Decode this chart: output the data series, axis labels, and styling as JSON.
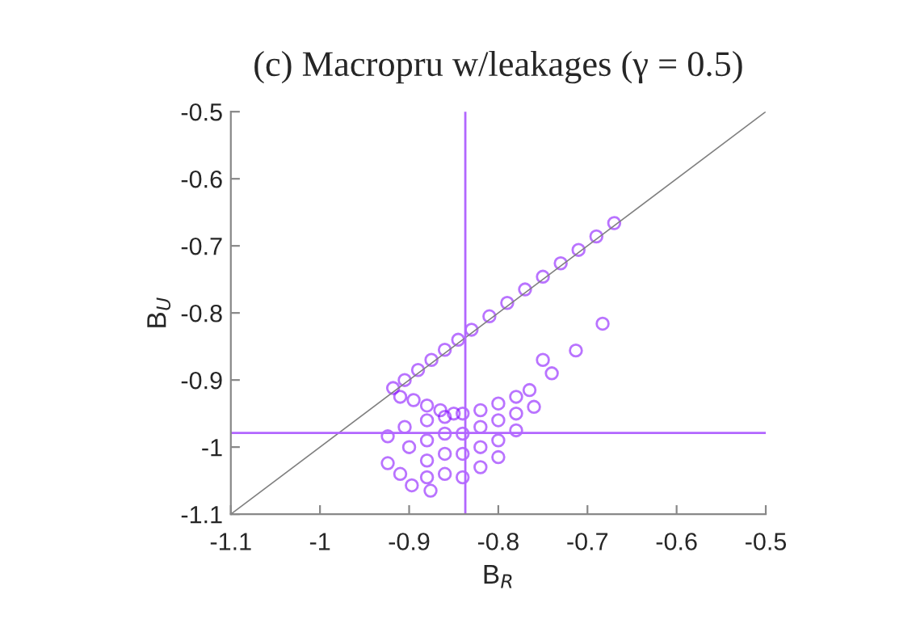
{
  "chart_data": {
    "type": "scatter",
    "title": "(c) Macropru w/leakages (γ = 0.5)",
    "xlabel": "B$_{R}$",
    "ylabel": "B$_{U}$",
    "xlim": [
      -1.1,
      -0.5
    ],
    "ylim": [
      -1.1,
      -0.5
    ],
    "xticks": [
      -1.1,
      -1,
      -0.9,
      -0.8,
      -0.7,
      -0.6,
      -0.5
    ],
    "yticks": [
      -1.1,
      -1,
      -0.9,
      -0.8,
      -0.7,
      -0.6,
      -0.5
    ],
    "grid": false,
    "legend": false,
    "series": [
      {
        "marker": "circle",
        "color": "#7f00ff",
        "x": [
          -0.918,
          -0.905,
          -0.89,
          -0.875,
          -0.86,
          -0.845,
          -0.83,
          -0.81,
          -0.79,
          -0.77,
          -0.75,
          -0.73,
          -0.71,
          -0.69,
          -0.67,
          -0.91,
          -0.895,
          -0.88,
          -0.865,
          -0.85,
          -0.88,
          -0.88,
          -0.88,
          -0.88,
          -0.86,
          -0.86,
          -0.86,
          -0.86,
          -0.84,
          -0.84,
          -0.84,
          -0.84,
          -0.82,
          -0.82,
          -0.82,
          -0.82,
          -0.8,
          -0.8,
          -0.8,
          -0.8,
          -0.78,
          -0.78,
          -0.78,
          -0.765,
          -0.76,
          -0.924,
          -0.924,
          -0.905,
          -0.9,
          -0.897,
          -0.876,
          -0.91,
          -0.74,
          -0.713,
          -0.683,
          -0.75
        ],
        "values": [
          -0.912,
          -0.9,
          -0.885,
          -0.87,
          -0.855,
          -0.84,
          -0.825,
          -0.805,
          -0.785,
          -0.765,
          -0.746,
          -0.726,
          -0.706,
          -0.686,
          -0.666,
          -0.925,
          -0.93,
          -0.938,
          -0.945,
          -0.95,
          -0.96,
          -0.99,
          -1.02,
          -1.045,
          -0.955,
          -0.98,
          -1.01,
          -1.04,
          -0.95,
          -0.98,
          -1.01,
          -1.045,
          -0.945,
          -0.97,
          -1.0,
          -1.03,
          -0.935,
          -0.96,
          -0.99,
          -1.015,
          -0.925,
          -0.95,
          -0.975,
          -0.915,
          -0.94,
          -0.984,
          -1.024,
          -0.97,
          -1.0,
          -1.057,
          -1.065,
          -1.04,
          -0.89,
          -0.856,
          -0.816,
          -0.87
        ]
      },
      {
        "type": "line",
        "marker": "none",
        "color": "#808080",
        "x": [
          -1.1,
          -0.5
        ],
        "values": [
          -1.1,
          -0.5
        ]
      }
    ],
    "ref_lines": [
      {
        "axis": "x",
        "value": -0.837,
        "color": "#b266ff"
      },
      {
        "axis": "y",
        "value": -0.979,
        "color": "#b266ff"
      }
    ]
  }
}
